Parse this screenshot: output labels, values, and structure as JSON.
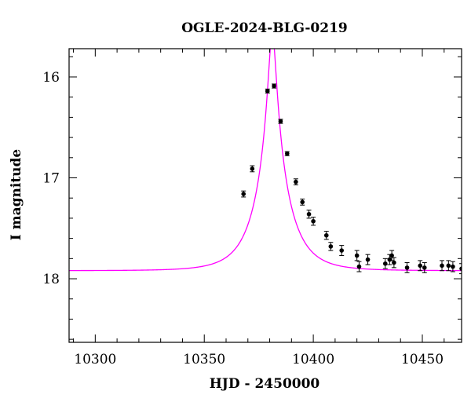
{
  "chart_data": {
    "type": "scatter",
    "title": "OGLE-2024-BLG-0219",
    "xlabel": "HJD - 2450000",
    "ylabel": "I magnitude",
    "xlim": [
      10288,
      10468
    ],
    "ylim": [
      18.63,
      15.72
    ],
    "y_inverted": true,
    "grid": false,
    "x_ticks": [
      10300,
      10350,
      10400,
      10450
    ],
    "x_tick_labels": [
      "10300",
      "10350",
      "10400",
      "10450"
    ],
    "y_ticks": [
      16,
      17,
      18
    ],
    "y_tick_labels": [
      "16",
      "17",
      "18"
    ],
    "colors": {
      "model": "#ff00ff",
      "points": "#000000",
      "frame": "#000000"
    },
    "series": [
      {
        "kind": "points_with_errorbars",
        "x": [
          10368,
          10372,
          10379,
          10382,
          10385,
          10388,
          10392,
          10395,
          10398,
          10400,
          10406,
          10408,
          10413,
          10420,
          10421,
          10425,
          10433,
          10435,
          10436,
          10437,
          10443,
          10449,
          10451,
          10459,
          10462,
          10464,
          10468
        ],
        "y": [
          17.16,
          16.91,
          16.14,
          16.09,
          16.44,
          16.76,
          17.04,
          17.24,
          17.36,
          17.43,
          17.57,
          17.68,
          17.72,
          17.77,
          17.88,
          17.81,
          17.85,
          17.81,
          17.77,
          17.84,
          17.89,
          17.87,
          17.89,
          17.87,
          17.87,
          17.88,
          17.9
        ],
        "err": [
          0.03,
          0.03,
          0.02,
          0.02,
          0.02,
          0.02,
          0.03,
          0.03,
          0.04,
          0.04,
          0.04,
          0.04,
          0.05,
          0.05,
          0.05,
          0.05,
          0.05,
          0.05,
          0.05,
          0.05,
          0.05,
          0.05,
          0.05,
          0.05,
          0.05,
          0.05,
          0.05
        ]
      },
      {
        "kind": "model_curve",
        "baseline_mag": 17.92,
        "t0": 10381.2,
        "u0": 0.115,
        "tE": 14.0
      }
    ]
  }
}
